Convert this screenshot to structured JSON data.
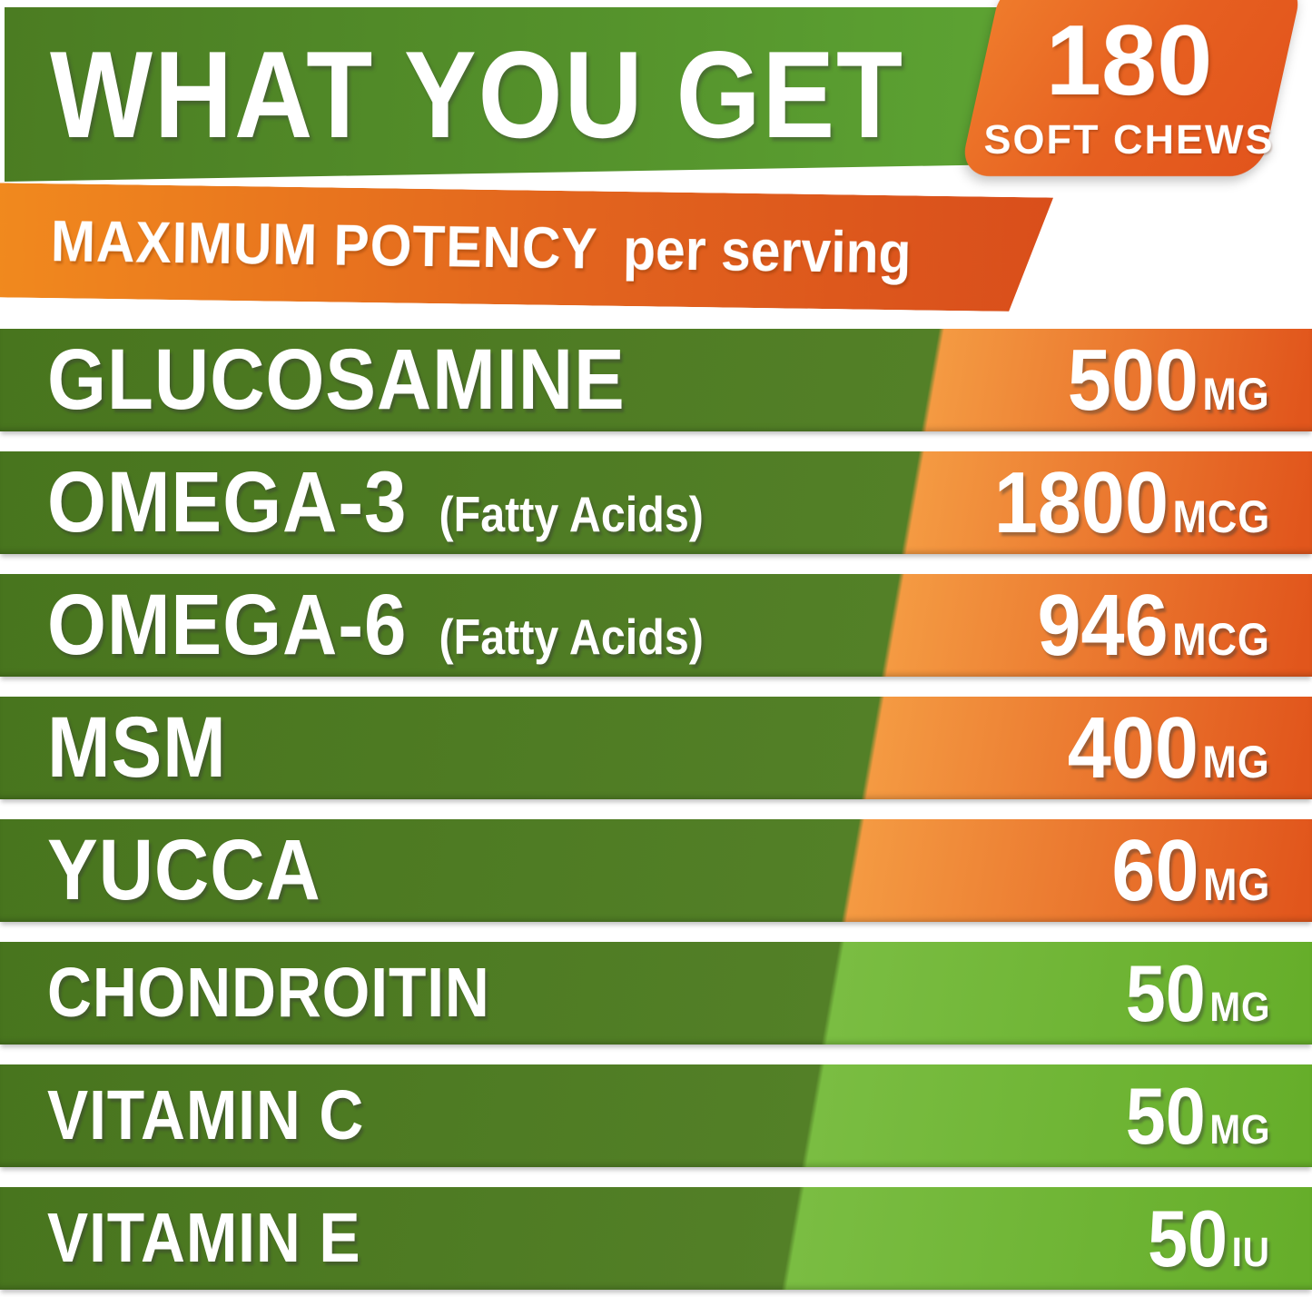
{
  "header": {
    "title": "WHAT YOU GET",
    "badge": {
      "count": "180",
      "label": "SOFT CHEWS"
    }
  },
  "banner": {
    "emphasis": "MAXIMUM POTENCY",
    "suffix": "per serving"
  },
  "ingredients": [
    {
      "name": "GLUCOSAMINE",
      "note": "",
      "value": "500",
      "unit": "MG"
    },
    {
      "name": "OMEGA-3",
      "note": "(Fatty Acids)",
      "value": "1800",
      "unit": "MCG"
    },
    {
      "name": "OMEGA-6",
      "note": "(Fatty Acids)",
      "value": "946",
      "unit": "MCG"
    },
    {
      "name": "MSM",
      "note": "",
      "value": "400",
      "unit": "MG"
    },
    {
      "name": "YUCCA",
      "note": "",
      "value": "60",
      "unit": "MG"
    },
    {
      "name": "CHONDROITIN",
      "note": "",
      "value": "50",
      "unit": "MG"
    },
    {
      "name": "VITAMIN C",
      "note": "",
      "value": "50",
      "unit": "MG"
    },
    {
      "name": "VITAMIN E",
      "note": "",
      "value": "50",
      "unit": "IU"
    }
  ],
  "palette": {
    "header_green_left": "#4b7c22",
    "header_green_right": "#5da433",
    "badge_orange_light": "#ef7c2c",
    "badge_orange_dark": "#e2541c",
    "banner_orange_left": "#f18a1e",
    "banner_orange_right": "#d94e1b",
    "row_green_dark": "#4c7b24",
    "row_orange_light": "#f49a42",
    "row_orange_dark": "#e1561c",
    "row_green_bright": "#6cb230",
    "text": "#ffffff",
    "background": "#ffffff"
  }
}
